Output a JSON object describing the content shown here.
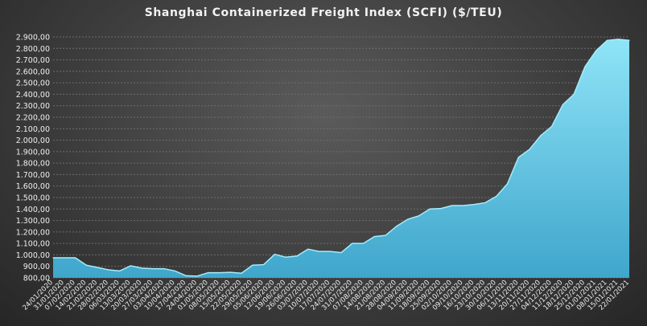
{
  "chart_data": {
    "type": "area",
    "title": "Shanghai Containerized Freight Index  (SCFI) ($/TEU)",
    "xlabel": "",
    "ylabel": "",
    "ylim": [
      800,
      2900
    ],
    "y_ticks": [
      "800,00",
      "900,00",
      "1.000,00",
      "1.100,00",
      "1.200,00",
      "1.300,00",
      "1.400,00",
      "1.500,00",
      "1.600,00",
      "1.700,00",
      "1.800,00",
      "1.900,00",
      "2.000,00",
      "2.100,00",
      "2.200,00",
      "2.300,00",
      "2.400,00",
      "2.500,00",
      "2.600,00",
      "2.700,00",
      "2.800,00",
      "2.900,00"
    ],
    "grid": true,
    "legend": "none",
    "colors": {
      "area_top": "#8fe4f7",
      "area_bottom": "#3fa6cc",
      "line": "#a5ecfb",
      "grid": "#6e6e6e",
      "axis_text": "#f0f0f0"
    },
    "categories": [
      "24/01/2020",
      "31/01/2020",
      "07/02/2020",
      "14/02/2020",
      "21/02/2020",
      "28/02/2020",
      "06/03/2020",
      "13/03/2020",
      "20/03/2020",
      "27/03/2020",
      "03/04/2020",
      "10/04/2020",
      "17/04/2020",
      "24/04/2020",
      "01/05/2020",
      "08/05/2020",
      "15/05/2020",
      "22/05/2020",
      "29/05/2020",
      "05/06/2020",
      "12/06/2020",
      "19/06/2020",
      "26/06/2020",
      "03/07/2020",
      "10/07/2020",
      "17/07/2020",
      "24/07/2020",
      "31/07/2020",
      "07/08/2020",
      "14/08/2020",
      "21/08/2020",
      "28/08/2020",
      "04/09/2020",
      "11/09/2020",
      "18/09/2020",
      "25/09/2020",
      "02/10/2020",
      "09/10/2020",
      "16/10/2020",
      "23/10/2020",
      "30/10/2020",
      "06/11/2020",
      "13/11/2020",
      "20/11/2020",
      "27/11/2020",
      "04/12/2020",
      "11/12/2020",
      "18/12/2020",
      "25/12/2020",
      "01/01/2021",
      "08/01/2021",
      "15/01/2021",
      "22/01/2021"
    ],
    "x_tick_labels": [
      "24/01/2020",
      "31/01/2020",
      "07/02/2020",
      "14/02/2020",
      "21/02/2020",
      "28/02/2020",
      "06/03/2020",
      "13/03/2020",
      "20/03/2020",
      "27/03/2020",
      "03/04/2020",
      "10/04/2020",
      "17/04/2020",
      "24/04/2020",
      "01/05/2020",
      "08/05/2020",
      "15/05/2020",
      "22/05/2020",
      "29/05/2020",
      "05/06/2020",
      "12/06/2020",
      "19/06/2020",
      "26/06/2020",
      "03/07/2020",
      "10/07/2020",
      "17/07/2020",
      "24/07/2020",
      "31/07/2020",
      "07/08/2020",
      "14/08/2020",
      "21/08/2020",
      "28/08/2020",
      "04/09/2020",
      "11/09/2020",
      "18/09/2020",
      "25/09/2020",
      "02/10/2020",
      "09/10/2020",
      "16/10/2020",
      "23/10/2020",
      "30/10/2020",
      "06/11/2020",
      "13/11/2020",
      "20/11/2020",
      "27/11/2020",
      "04/12/2020",
      "11/12/2020",
      "18/12/2020",
      "25/12/2020",
      "01/01/2021",
      "08/01/2021",
      "15/01/2021",
      "22/01/2021"
    ],
    "series": [
      {
        "values": [
          975,
          975,
          975,
          910,
          890,
          870,
          860,
          905,
          885,
          880,
          880,
          860,
          818,
          815,
          845,
          845,
          848,
          840,
          910,
          915,
          1005,
          980,
          990,
          1050,
          1030,
          1030,
          1020,
          1100,
          1100,
          1160,
          1170,
          1250,
          1310,
          1340,
          1400,
          1405,
          1430,
          1430,
          1440,
          1455,
          1510,
          1620,
          1850,
          1920,
          2040,
          2120,
          2310,
          2400,
          2640,
          2780,
          2870,
          2880,
          2870
        ]
      }
    ]
  }
}
